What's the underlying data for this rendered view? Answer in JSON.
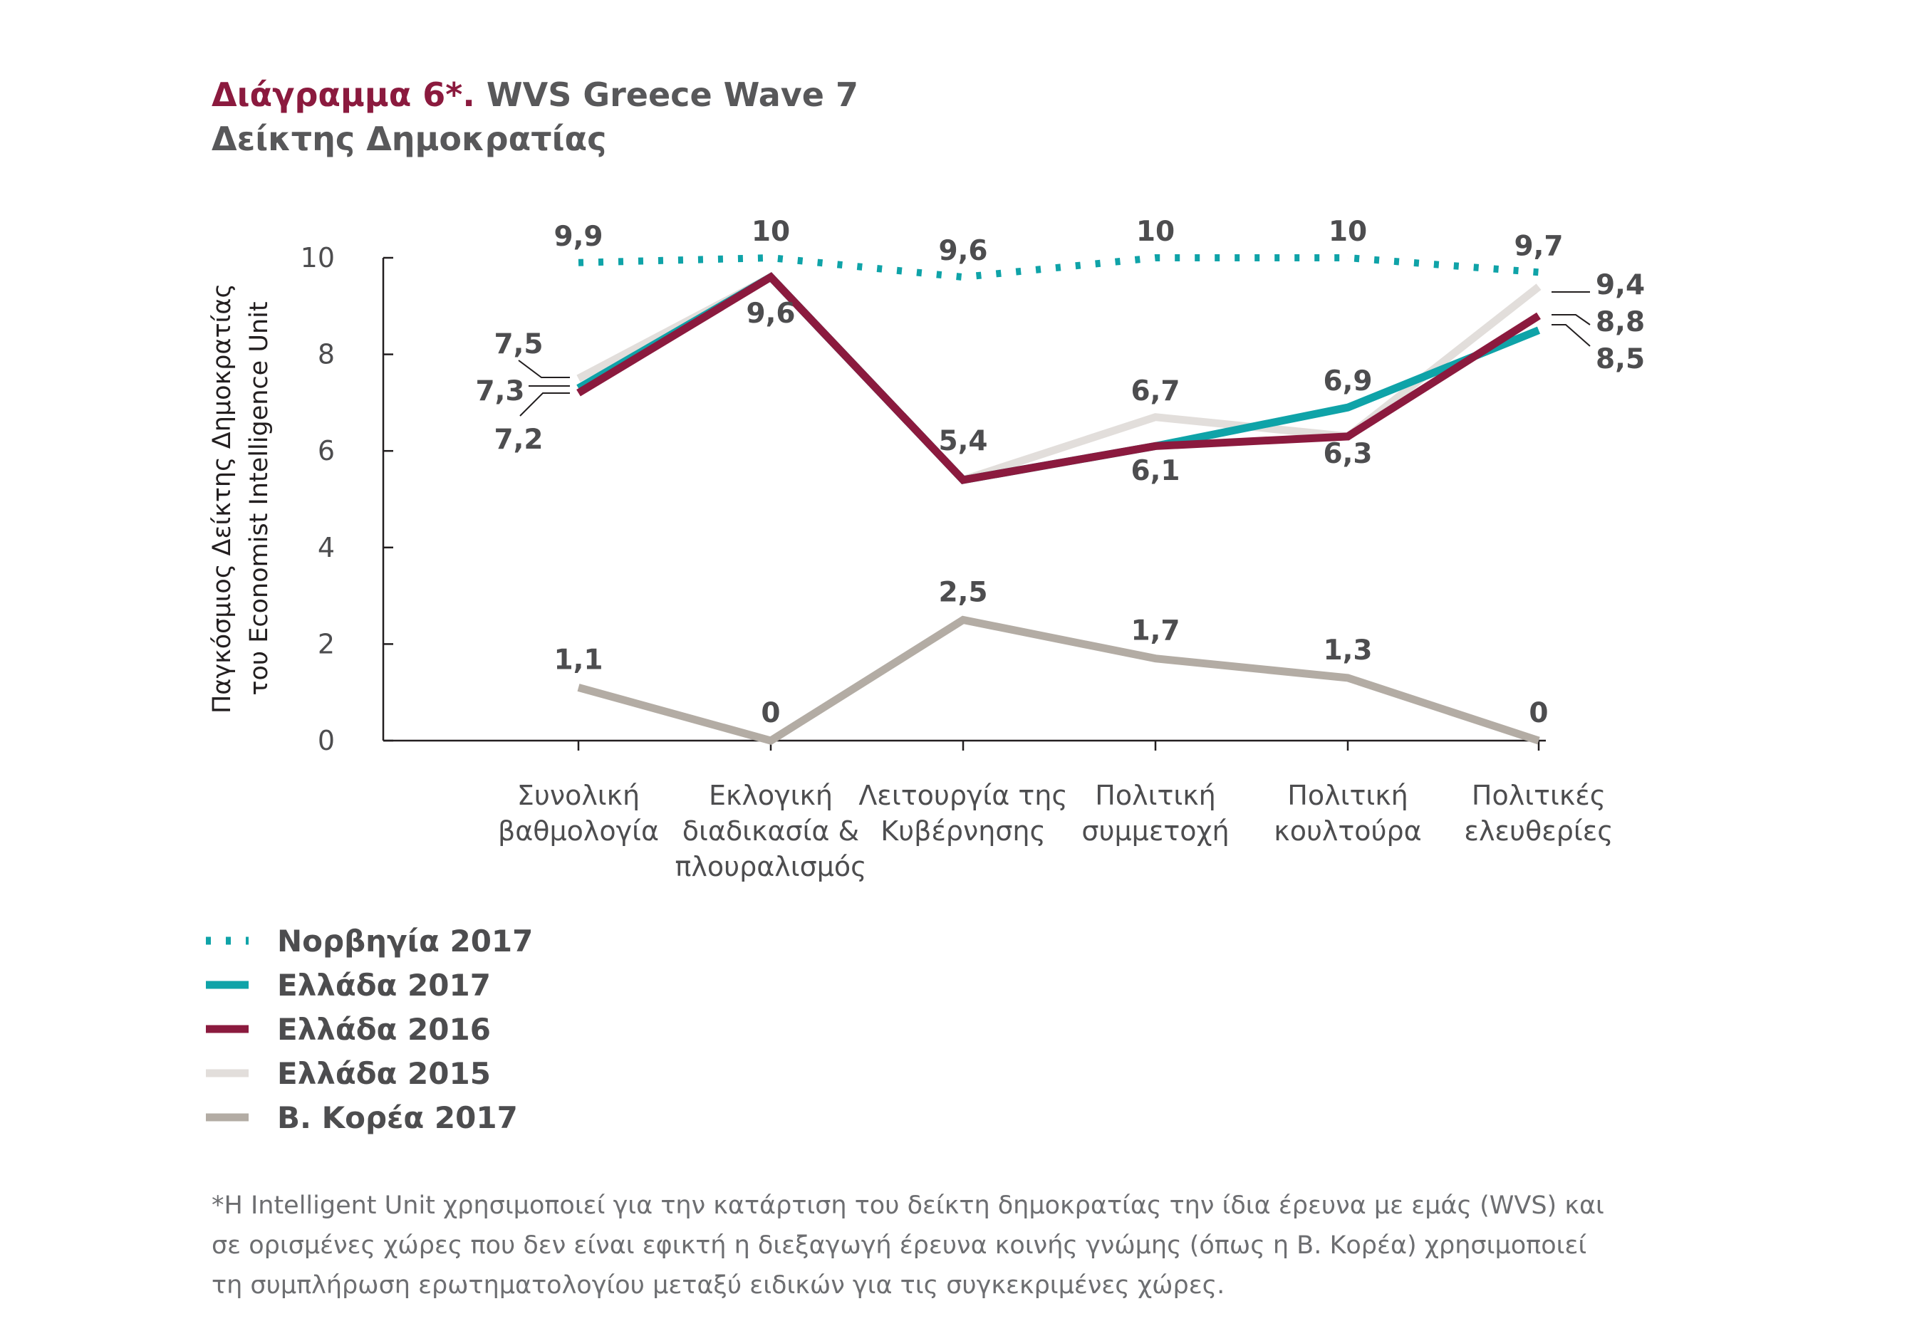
{
  "title": {
    "lead": "Διάγραμμα 6*.",
    "rest": "WVS Greece Wave 7",
    "subtitle": "Δείκτης Δημοκρατίας"
  },
  "chart_data": {
    "type": "line",
    "ylabel_line1": "Παγκόσμιος Δείκτης Δημοκρατίας",
    "ylabel_line2": "του Economist Intelligence Unit",
    "ylim": [
      0,
      10
    ],
    "yticks": [
      "0",
      "2",
      "4",
      "6",
      "8",
      "10"
    ],
    "categories": [
      [
        "Συνολική",
        "βαθμολογία"
      ],
      [
        "Εκλογική",
        "διαδικασία &",
        "πλουραλισμός"
      ],
      [
        "Λειτουργία της",
        "Κυβέρνησης"
      ],
      [
        "Πολιτική",
        "συμμετοχή"
      ],
      [
        "Πολιτική",
        "κουλτούρα"
      ],
      [
        "Πολιτικές",
        "ελευθερίες"
      ]
    ],
    "series": [
      {
        "name": "Ελλάδα 2015",
        "color": "#e2dedb",
        "style": "solid",
        "values": [
          7.5,
          9.6,
          5.4,
          6.7,
          6.3,
          9.4
        ]
      },
      {
        "name": "Ελλάδα 2017",
        "color": "#0fa3a8",
        "style": "solid",
        "values": [
          7.3,
          9.6,
          5.4,
          6.1,
          6.9,
          8.5
        ]
      },
      {
        "name": "Ελλάδα 2016",
        "color": "#8b1a3e",
        "style": "solid",
        "values": [
          7.2,
          9.6,
          5.4,
          6.1,
          6.3,
          8.8
        ]
      },
      {
        "name": "Β. Κορέα 2017",
        "color": "#b3aca4",
        "style": "solid",
        "values": [
          1.1,
          0,
          2.5,
          1.7,
          1.3,
          0
        ]
      },
      {
        "name": "Νορβηγία 2017",
        "color": "#0fa3a8",
        "style": "dotted",
        "values": [
          9.9,
          10,
          9.6,
          10,
          10,
          9.7
        ]
      }
    ],
    "data_labels": {
      "norway": [
        "9,9",
        "10",
        "9,6",
        "10",
        "10",
        "9,7"
      ],
      "korea": [
        "1,1",
        "0",
        "2,5",
        "1,7",
        "1,3",
        "0"
      ],
      "greece_first": [
        "7,5",
        "7,3",
        "7,2"
      ],
      "greece_shared": [
        "9,6",
        "5,4"
      ],
      "greece_mid": [
        "6,7",
        "6,1",
        "6,9",
        "6,3"
      ],
      "greece_last": [
        "9,4",
        "8,8",
        "8,5"
      ]
    }
  },
  "legend": [
    {
      "label": "Νορβηγία 2017",
      "color": "#0fa3a8",
      "style": "dotted"
    },
    {
      "label": "Ελλάδα 2017",
      "color": "#0fa3a8",
      "style": "solid"
    },
    {
      "label": "Ελλάδα 2016",
      "color": "#8b1a3e",
      "style": "solid"
    },
    {
      "label": "Ελλάδα 2015",
      "color": "#e2dedb",
      "style": "solid"
    },
    {
      "label": "Β. Κορέα 2017",
      "color": "#b3aca4",
      "style": "solid"
    }
  ],
  "footnote": [
    "*Η Intelligent Unit χρησιμοποιεί για την κατάρτιση του δείκτη δημοκρατίας την ίδια έρευνα με εμάς (WVS) και",
    "σε ορισμένες  χώρες που δεν είναι εφικτή η διεξαγωγή έρευνα κοινής γνώμης (όπως η Β. Κορέα) χρησιμοποιεί",
    "τη συμπλήρωση ερωτηματολογίου μεταξύ ειδικών για τις συγκεκριμένες χώρες."
  ]
}
